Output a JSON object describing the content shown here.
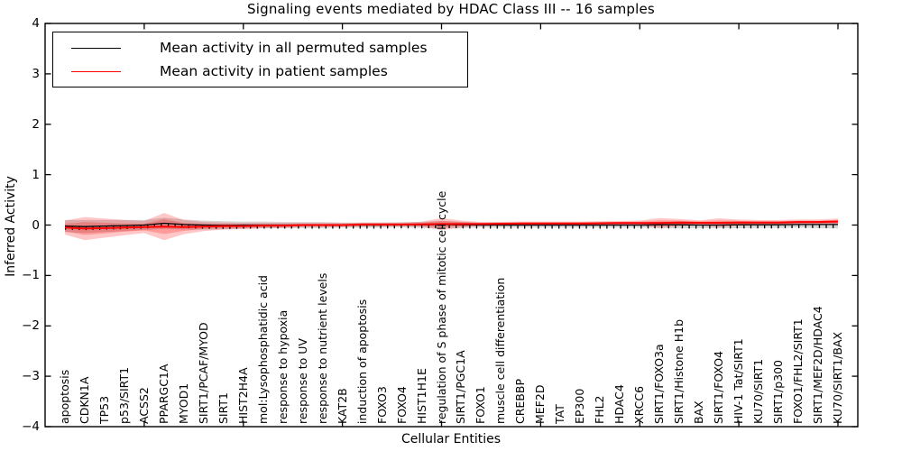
{
  "title": "Signaling events mediated by HDAC Class III -- 16 samples",
  "axes": {
    "ylabel": "Inferred Activity",
    "xlabel": "Cellular Entities",
    "yticklabels": [
      "4",
      "3",
      "2",
      "1",
      "0",
      "−1",
      "−2",
      "−3",
      "−4"
    ]
  },
  "colors": {
    "permuted_line": "#000000",
    "patient_line": "#ff0000",
    "permuted_band": "rgba(128,128,128,0.32)",
    "patient_band": "rgba(255,0,0,0.22)",
    "frame": "#000000",
    "background": "#ffffff"
  },
  "chart_data": {
    "type": "line",
    "title": "Signaling events mediated by HDAC Class III -- 16 samples",
    "xlabel": "Cellular Entities",
    "ylabel": "Inferred Activity",
    "ylim": [
      -4,
      4
    ],
    "yticks": [
      4,
      3,
      2,
      1,
      0,
      -1,
      -2,
      -3,
      -4
    ],
    "grid": false,
    "legend_position": "upper left",
    "categories": [
      "apoptosis",
      "CDKN1A",
      "TP53",
      "p53/SIRT1",
      "ACSS2",
      "PPARGC1A",
      "MYOD1",
      "SIRT1/PCAF/MYOD",
      "SIRT1",
      "HIST2H4A",
      "mol:Lysophosphatidic acid",
      "response to hypoxia",
      "response to UV",
      "response to nutrient levels",
      "KAT2B",
      "induction of apoptosis",
      "FOXO3",
      "FOXO4",
      "HIST1H1E",
      "regulation of S phase of mitotic cell cycle",
      "SIRT1/PGC1A",
      "FOXO1",
      "muscle cell differentiation",
      "CREBBP",
      "MEF2D",
      "TAT",
      "EP300",
      "FHL2",
      "HDAC4",
      "XRCC6",
      "SIRT1/FOXO3a",
      "SIRT1/Histone H1b",
      "BAX",
      "SIRT1/FOXO4",
      "HIV-1 Tat/SIRT1",
      "KU70/SIRT1",
      "SIRT1/p300",
      "FOXO1/FHL2/SIRT1",
      "SIRT1/MEF2D/HDAC4",
      "KU70/SIRT1/BAX"
    ],
    "series": [
      {
        "name": "Mean activity in all permuted samples",
        "color": "#000000",
        "values": [
          -0.02,
          -0.03,
          -0.02,
          -0.01,
          0.0,
          0.035,
          0.01,
          0.0,
          -0.005,
          0.0,
          0.0,
          0.0,
          0.0,
          0.0,
          0.0,
          0.0,
          0.0,
          0.005,
          0.005,
          0.01,
          0.005,
          0.0,
          0.0,
          0.0,
          0.0,
          0.0,
          0.0,
          0.0,
          0.0,
          0.0,
          0.005,
          0.005,
          0.0,
          0.0,
          0.005,
          0.005,
          0.005,
          0.01,
          0.01,
          0.01
        ],
        "band": [
          0.12,
          0.13,
          0.12,
          0.11,
          0.1,
          0.11,
          0.1,
          0.09,
          0.08,
          0.07,
          0.07,
          0.06,
          0.06,
          0.06,
          0.05,
          0.05,
          0.05,
          0.05,
          0.06,
          0.07,
          0.06,
          0.05,
          0.05,
          0.05,
          0.05,
          0.05,
          0.05,
          0.05,
          0.05,
          0.05,
          0.06,
          0.07,
          0.06,
          0.06,
          0.07,
          0.06,
          0.06,
          0.06,
          0.07,
          0.08
        ]
      },
      {
        "name": "Mean activity in patient samples",
        "color": "#ff0000",
        "values": [
          -0.05,
          -0.07,
          -0.06,
          -0.05,
          -0.04,
          -0.03,
          -0.04,
          -0.03,
          -0.02,
          -0.02,
          -0.01,
          -0.01,
          0.0,
          0.0,
          0.0,
          0.01,
          0.01,
          0.01,
          0.015,
          0.02,
          0.02,
          0.02,
          0.025,
          0.03,
          0.03,
          0.03,
          0.03,
          0.035,
          0.04,
          0.04,
          0.04,
          0.05,
          0.045,
          0.045,
          0.05,
          0.05,
          0.05,
          0.06,
          0.06,
          0.07
        ],
        "band": [
          0.14,
          0.23,
          0.19,
          0.15,
          0.12,
          0.27,
          0.14,
          0.09,
          0.07,
          0.06,
          0.05,
          0.05,
          0.04,
          0.04,
          0.04,
          0.04,
          0.04,
          0.04,
          0.05,
          0.12,
          0.07,
          0.04,
          0.04,
          0.04,
          0.04,
          0.04,
          0.04,
          0.04,
          0.04,
          0.05,
          0.1,
          0.07,
          0.05,
          0.09,
          0.06,
          0.05,
          0.05,
          0.05,
          0.05,
          0.06
        ]
      }
    ]
  }
}
